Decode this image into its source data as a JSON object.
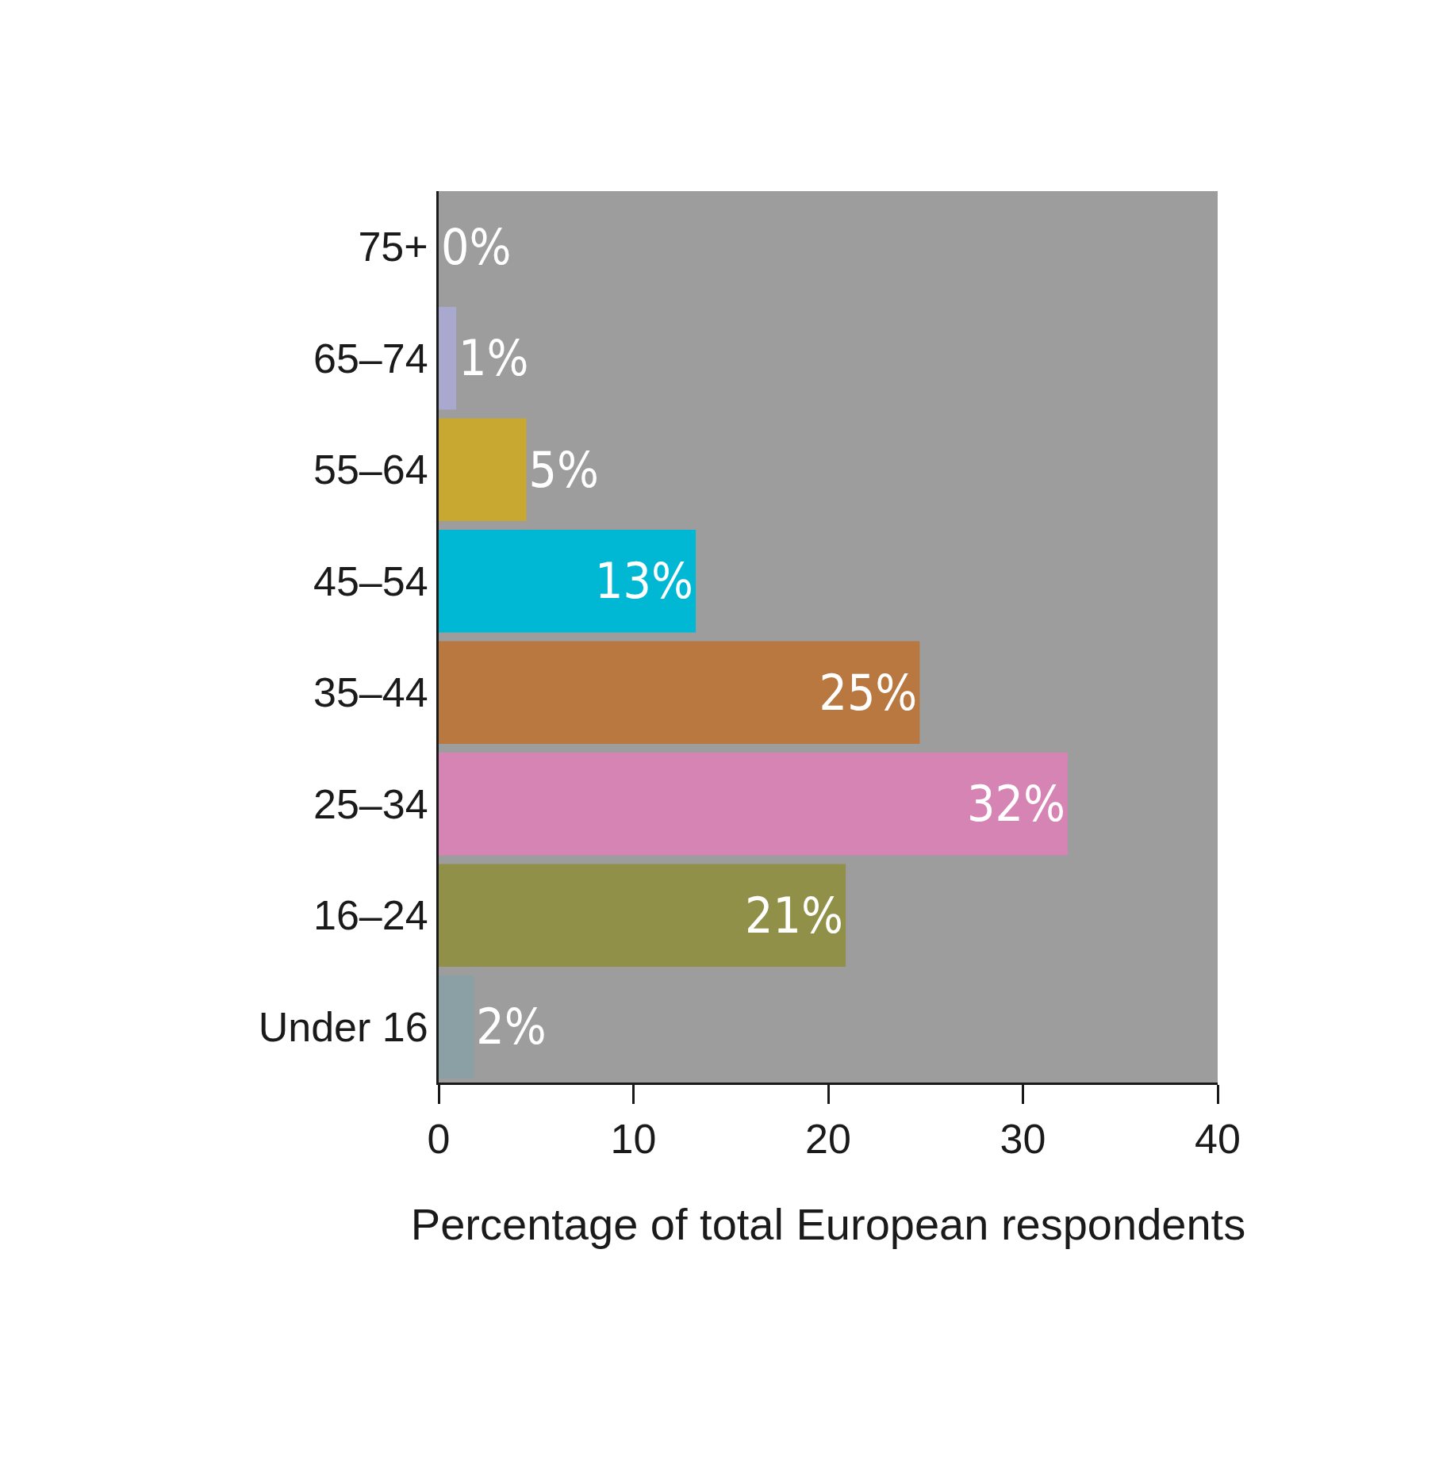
{
  "chart_data": {
    "type": "bar",
    "orientation": "horizontal",
    "xlabel": "Percentage of total European respondents",
    "categories": [
      "75+",
      "65–74",
      "55–64",
      "45–54",
      "35–44",
      "25–34",
      "16–24",
      "Under 16"
    ],
    "values": [
      0,
      0.9,
      4.5,
      13.2,
      24.7,
      32.3,
      20.9,
      1.8
    ],
    "colors": [
      "#a9a9d0",
      "#a9a9d0",
      "#c9a832",
      "#00b8d4",
      "#b87840",
      "#d684b4",
      "#909048",
      "#8aa0a4"
    ],
    "value_labels": [
      "0%",
      "1%",
      "5%",
      "13%",
      "25%",
      "32%",
      "21%",
      "2%"
    ],
    "xlim": [
      0,
      40
    ],
    "xticks": [
      0,
      10,
      20,
      30,
      40
    ]
  }
}
